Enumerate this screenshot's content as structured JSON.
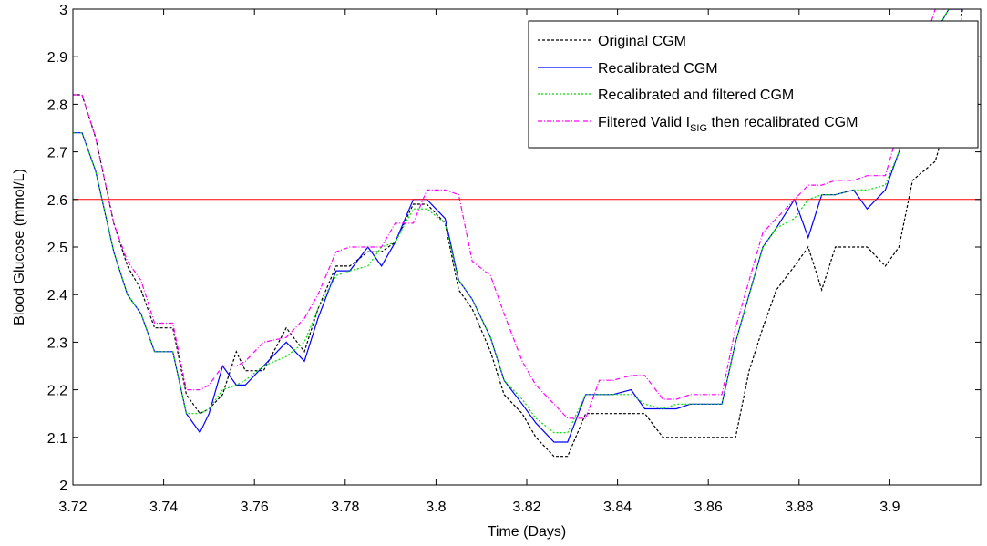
{
  "chart_data": {
    "type": "line",
    "title": "",
    "xlabel": "Time (Days)",
    "ylabel": "Blood Glucose (mmol/L)",
    "xlim": [
      3.72,
      3.92
    ],
    "ylim": [
      2.0,
      3.0
    ],
    "xticks": [
      3.72,
      3.74,
      3.76,
      3.78,
      3.8,
      3.82,
      3.84,
      3.86,
      3.88,
      3.9
    ],
    "xtick_labels": [
      "3.72",
      "3.74",
      "3.76",
      "3.78",
      "3.8",
      "3.82",
      "3.84",
      "3.86",
      "3.88",
      "3.9"
    ],
    "yticks": [
      2.0,
      2.1,
      2.2,
      2.3,
      2.4,
      2.5,
      2.6,
      2.7,
      2.8,
      2.9,
      3.0
    ],
    "ytick_labels": [
      "2",
      "2.1",
      "2.2",
      "2.3",
      "2.4",
      "2.5",
      "2.6",
      "2.7",
      "2.8",
      "2.9",
      "3"
    ],
    "grid": false,
    "legend_position": "top-right",
    "reference_line": {
      "y": 2.6,
      "color": "#ff0000"
    },
    "series": [
      {
        "name": "Original CGM",
        "color": "#000000",
        "dash": "dashed",
        "x": [
          3.72,
          3.722,
          3.725,
          3.729,
          3.732,
          3.735,
          3.738,
          3.742,
          3.745,
          3.748,
          3.75,
          3.753,
          3.756,
          3.758,
          3.762,
          3.767,
          3.771,
          3.774,
          3.778,
          3.781,
          3.785,
          3.788,
          3.791,
          3.795,
          3.798,
          3.802,
          3.805,
          3.808,
          3.812,
          3.815,
          3.819,
          3.822,
          3.826,
          3.829,
          3.833,
          3.836,
          3.839,
          3.843,
          3.846,
          3.85,
          3.853,
          3.856,
          3.86,
          3.863,
          3.866,
          3.869,
          3.872,
          3.875,
          3.879,
          3.882,
          3.885,
          3.888,
          3.892,
          3.895,
          3.899,
          3.902,
          3.905,
          3.91,
          3.913,
          3.916
        ],
        "values": [
          2.82,
          2.82,
          2.73,
          2.55,
          2.46,
          2.41,
          2.33,
          2.33,
          2.19,
          2.15,
          2.16,
          2.19,
          2.28,
          2.24,
          2.24,
          2.33,
          2.28,
          2.37,
          2.46,
          2.46,
          2.49,
          2.49,
          2.51,
          2.59,
          2.59,
          2.55,
          2.41,
          2.37,
          2.28,
          2.19,
          2.15,
          2.1,
          2.06,
          2.06,
          2.15,
          2.15,
          2.15,
          2.15,
          2.15,
          2.1,
          2.1,
          2.1,
          2.1,
          2.1,
          2.1,
          2.24,
          2.33,
          2.41,
          2.46,
          2.5,
          2.41,
          2.5,
          2.5,
          2.5,
          2.46,
          2.5,
          2.64,
          2.68,
          2.78,
          3.0
        ]
      },
      {
        "name": "Recalibrated CGM",
        "color": "#0000ff",
        "dash": "solid",
        "x": [
          3.72,
          3.722,
          3.725,
          3.729,
          3.732,
          3.735,
          3.738,
          3.742,
          3.745,
          3.748,
          3.75,
          3.753,
          3.756,
          3.758,
          3.762,
          3.767,
          3.771,
          3.774,
          3.778,
          3.781,
          3.785,
          3.788,
          3.791,
          3.795,
          3.798,
          3.802,
          3.805,
          3.808,
          3.812,
          3.815,
          3.819,
          3.822,
          3.826,
          3.829,
          3.833,
          3.836,
          3.839,
          3.843,
          3.846,
          3.85,
          3.853,
          3.856,
          3.86,
          3.863,
          3.866,
          3.869,
          3.872,
          3.875,
          3.879,
          3.882,
          3.885,
          3.888,
          3.892,
          3.895,
          3.899,
          3.902,
          3.905,
          3.91,
          3.913,
          3.916
        ],
        "values": [
          2.74,
          2.74,
          2.66,
          2.49,
          2.4,
          2.36,
          2.28,
          2.28,
          2.15,
          2.11,
          2.15,
          2.25,
          2.21,
          2.21,
          2.25,
          2.3,
          2.26,
          2.35,
          2.45,
          2.45,
          2.5,
          2.46,
          2.51,
          2.6,
          2.6,
          2.56,
          2.43,
          2.39,
          2.31,
          2.22,
          2.17,
          2.13,
          2.09,
          2.09,
          2.19,
          2.19,
          2.19,
          2.2,
          2.16,
          2.16,
          2.16,
          2.17,
          2.17,
          2.17,
          2.3,
          2.4,
          2.5,
          2.54,
          2.6,
          2.52,
          2.61,
          2.61,
          2.62,
          2.58,
          2.62,
          2.7,
          2.8,
          2.95,
          3.0,
          3.0
        ]
      },
      {
        "name": "Recalibrated and filtered CGM",
        "color": "#00dd00",
        "dash": "dotted",
        "x": [
          3.72,
          3.722,
          3.725,
          3.729,
          3.732,
          3.735,
          3.738,
          3.742,
          3.745,
          3.748,
          3.75,
          3.753,
          3.756,
          3.758,
          3.762,
          3.767,
          3.771,
          3.774,
          3.778,
          3.781,
          3.785,
          3.788,
          3.791,
          3.795,
          3.798,
          3.802,
          3.805,
          3.808,
          3.812,
          3.815,
          3.819,
          3.822,
          3.826,
          3.829,
          3.833,
          3.836,
          3.839,
          3.843,
          3.846,
          3.85,
          3.853,
          3.856,
          3.86,
          3.863,
          3.866,
          3.869,
          3.872,
          3.875,
          3.879,
          3.882,
          3.885,
          3.888,
          3.892,
          3.895,
          3.899,
          3.902,
          3.905,
          3.91,
          3.913,
          3.916
        ],
        "values": [
          2.74,
          2.74,
          2.66,
          2.49,
          2.4,
          2.36,
          2.28,
          2.28,
          2.15,
          2.15,
          2.16,
          2.2,
          2.21,
          2.22,
          2.25,
          2.27,
          2.3,
          2.37,
          2.44,
          2.45,
          2.46,
          2.5,
          2.51,
          2.58,
          2.58,
          2.55,
          2.43,
          2.39,
          2.31,
          2.22,
          2.18,
          2.14,
          2.11,
          2.11,
          2.19,
          2.19,
          2.19,
          2.19,
          2.17,
          2.16,
          2.17,
          2.17,
          2.17,
          2.17,
          2.3,
          2.4,
          2.5,
          2.54,
          2.56,
          2.6,
          2.61,
          2.61,
          2.62,
          2.62,
          2.63,
          2.7,
          2.8,
          2.95,
          3.0,
          3.0
        ]
      },
      {
        "name": "Filtered Valid I_SIG then recalibrated CGM",
        "color": "#ff00ff",
        "dash": "dashdot",
        "x": [
          3.72,
          3.722,
          3.725,
          3.729,
          3.732,
          3.735,
          3.738,
          3.742,
          3.745,
          3.748,
          3.75,
          3.753,
          3.756,
          3.758,
          3.762,
          3.767,
          3.771,
          3.774,
          3.778,
          3.781,
          3.785,
          3.788,
          3.791,
          3.795,
          3.798,
          3.802,
          3.805,
          3.808,
          3.812,
          3.815,
          3.819,
          3.822,
          3.826,
          3.829,
          3.833,
          3.836,
          3.839,
          3.843,
          3.846,
          3.85,
          3.853,
          3.856,
          3.86,
          3.863,
          3.866,
          3.869,
          3.872,
          3.875,
          3.879,
          3.882,
          3.885,
          3.888,
          3.892,
          3.895,
          3.899,
          3.902,
          3.905,
          3.91,
          3.913,
          3.916
        ],
        "values": [
          2.82,
          2.82,
          2.73,
          2.55,
          2.47,
          2.43,
          2.34,
          2.34,
          2.2,
          2.2,
          2.21,
          2.25,
          2.25,
          2.26,
          2.3,
          2.31,
          2.35,
          2.4,
          2.49,
          2.5,
          2.5,
          2.5,
          2.55,
          2.55,
          2.62,
          2.62,
          2.61,
          2.47,
          2.44,
          2.36,
          2.26,
          2.21,
          2.17,
          2.14,
          2.14,
          2.22,
          2.22,
          2.23,
          2.23,
          2.18,
          2.18,
          2.19,
          2.19,
          2.19,
          2.33,
          2.43,
          2.53,
          2.56,
          2.6,
          2.63,
          2.63,
          2.64,
          2.64,
          2.65,
          2.65,
          2.75,
          2.85,
          3.0,
          3.0,
          3.0
        ]
      }
    ],
    "legend": {
      "entries": [
        {
          "label": "Original CGM",
          "main": "Original CGM",
          "sub": ""
        },
        {
          "label": "Recalibrated CGM",
          "main": "Recalibrated CGM",
          "sub": ""
        },
        {
          "label": "Recalibrated and filtered CGM",
          "main": "Recalibrated and filtered CGM",
          "sub": ""
        },
        {
          "label": "Filtered Valid I_SIG then recalibrated CGM",
          "main": "Filtered Valid I",
          "sub": "SIG",
          "tail": " then recalibrated CGM"
        }
      ]
    }
  }
}
